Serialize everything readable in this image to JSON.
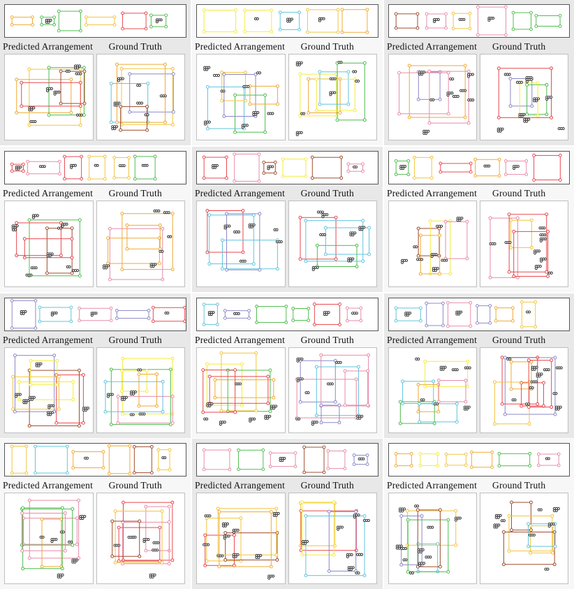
{
  "labels": {
    "predicted": "Predicted  Arrangement",
    "ground_truth": "Ground Truth"
  },
  "palette": {
    "red": "#e8454b",
    "green": "#4cbb4a",
    "blue": "#8a87c6",
    "cyan": "#5ec3dc",
    "yellow": "#f2c33c",
    "orange": "#f0a830",
    "pink": "#e68aa6",
    "lightyellow": "#f6ea38",
    "brown": "#9c4a2a",
    "dot": "#333333"
  },
  "examples": [
    {
      "id": 1
    },
    {
      "id": 2
    },
    {
      "id": 3
    },
    {
      "id": 4
    },
    {
      "id": 5
    },
    {
      "id": 6
    },
    {
      "id": 7
    },
    {
      "id": 8
    },
    {
      "id": 9
    },
    {
      "id": 10
    },
    {
      "id": 11
    },
    {
      "id": 12
    }
  ]
}
